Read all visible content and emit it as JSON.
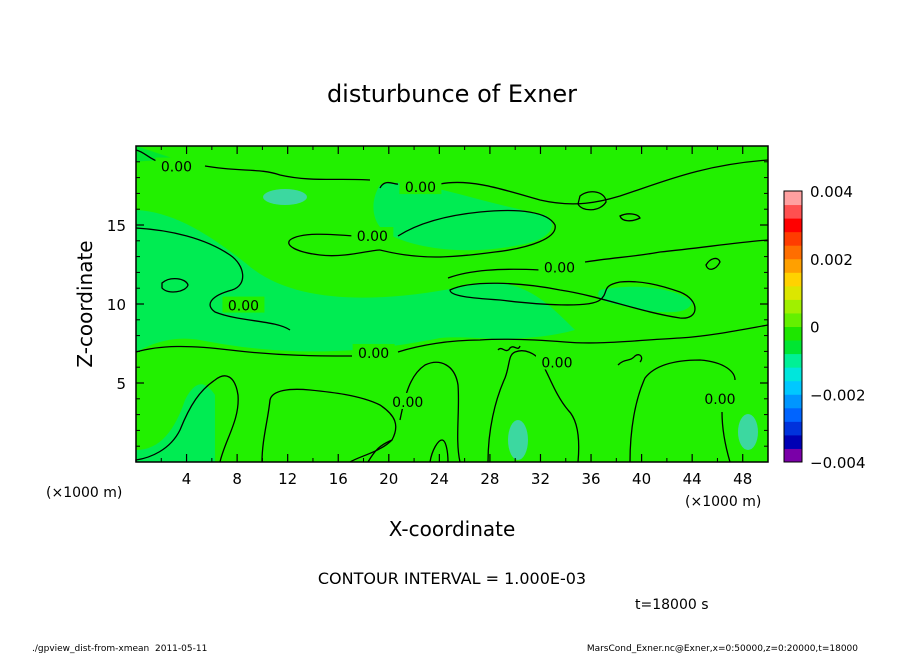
{
  "chart_data": {
    "type": "contour",
    "title": "disturbunce of Exner",
    "xlabel": "X-coordinate",
    "ylabel": "Z-coordinate",
    "x_unit": "(×1000 m)",
    "y_unit": "(×1000 m)",
    "xlim": [
      0,
      50
    ],
    "ylim": [
      0,
      20
    ],
    "x_ticks": [
      4,
      8,
      12,
      16,
      20,
      24,
      28,
      32,
      36,
      40,
      44,
      48
    ],
    "y_ticks": [
      5,
      10,
      15
    ],
    "contour_interval_text": "CONTOUR INTERVAL = 1.000E-03",
    "time_text": "t=18000 s",
    "contour_labels": [
      {
        "x": 3.2,
        "z": 18.7,
        "text": "0.00"
      },
      {
        "x": 22.5,
        "z": 17.4,
        "text": "0.00"
      },
      {
        "x": 18.7,
        "z": 14.3,
        "text": "0.00"
      },
      {
        "x": 33.5,
        "z": 12.3,
        "text": "0.00"
      },
      {
        "x": 8.5,
        "z": 9.9,
        "text": "0.00"
      },
      {
        "x": 18.8,
        "z": 6.9,
        "text": "0.00"
      },
      {
        "x": 33.3,
        "z": 6.3,
        "text": "0.00"
      },
      {
        "x": 21.5,
        "z": 3.8,
        "text": "0.00"
      },
      {
        "x": 46.2,
        "z": 4.0,
        "text": "0.00"
      }
    ],
    "colorbar": {
      "ticks": [
        {
          "value": 0.004,
          "label": "0.004"
        },
        {
          "value": 0.002,
          "label": "0.002"
        },
        {
          "value": 0,
          "label": "0"
        },
        {
          "value": -0.002,
          "label": "−0.002"
        },
        {
          "value": -0.004,
          "label": "−0.004"
        }
      ],
      "range": [
        -0.004,
        0.004
      ],
      "colors": [
        "#7a00a8",
        "#0000b4",
        "#0032dc",
        "#0064ff",
        "#0096ff",
        "#00c8ff",
        "#00e6dc",
        "#00f096",
        "#00e632",
        "#1ee600",
        "#64f000",
        "#a0f000",
        "#dce600",
        "#ffd200",
        "#ffa000",
        "#ff6e00",
        "#ff3c00",
        "#ff0000",
        "#ff5050",
        "#ffa0a0"
      ]
    },
    "field_colors": {
      "main": "#22f000",
      "patch_1": "#00e632",
      "patch_2": "#00ec52",
      "cool": "#3cd8a0"
    },
    "grid": false
  },
  "footer": {
    "left": "./gpview_dist-from-xmean  2011-05-11",
    "right": "MarsCond_Exner.nc@Exner,x=0:50000,z=0:20000,t=18000"
  }
}
